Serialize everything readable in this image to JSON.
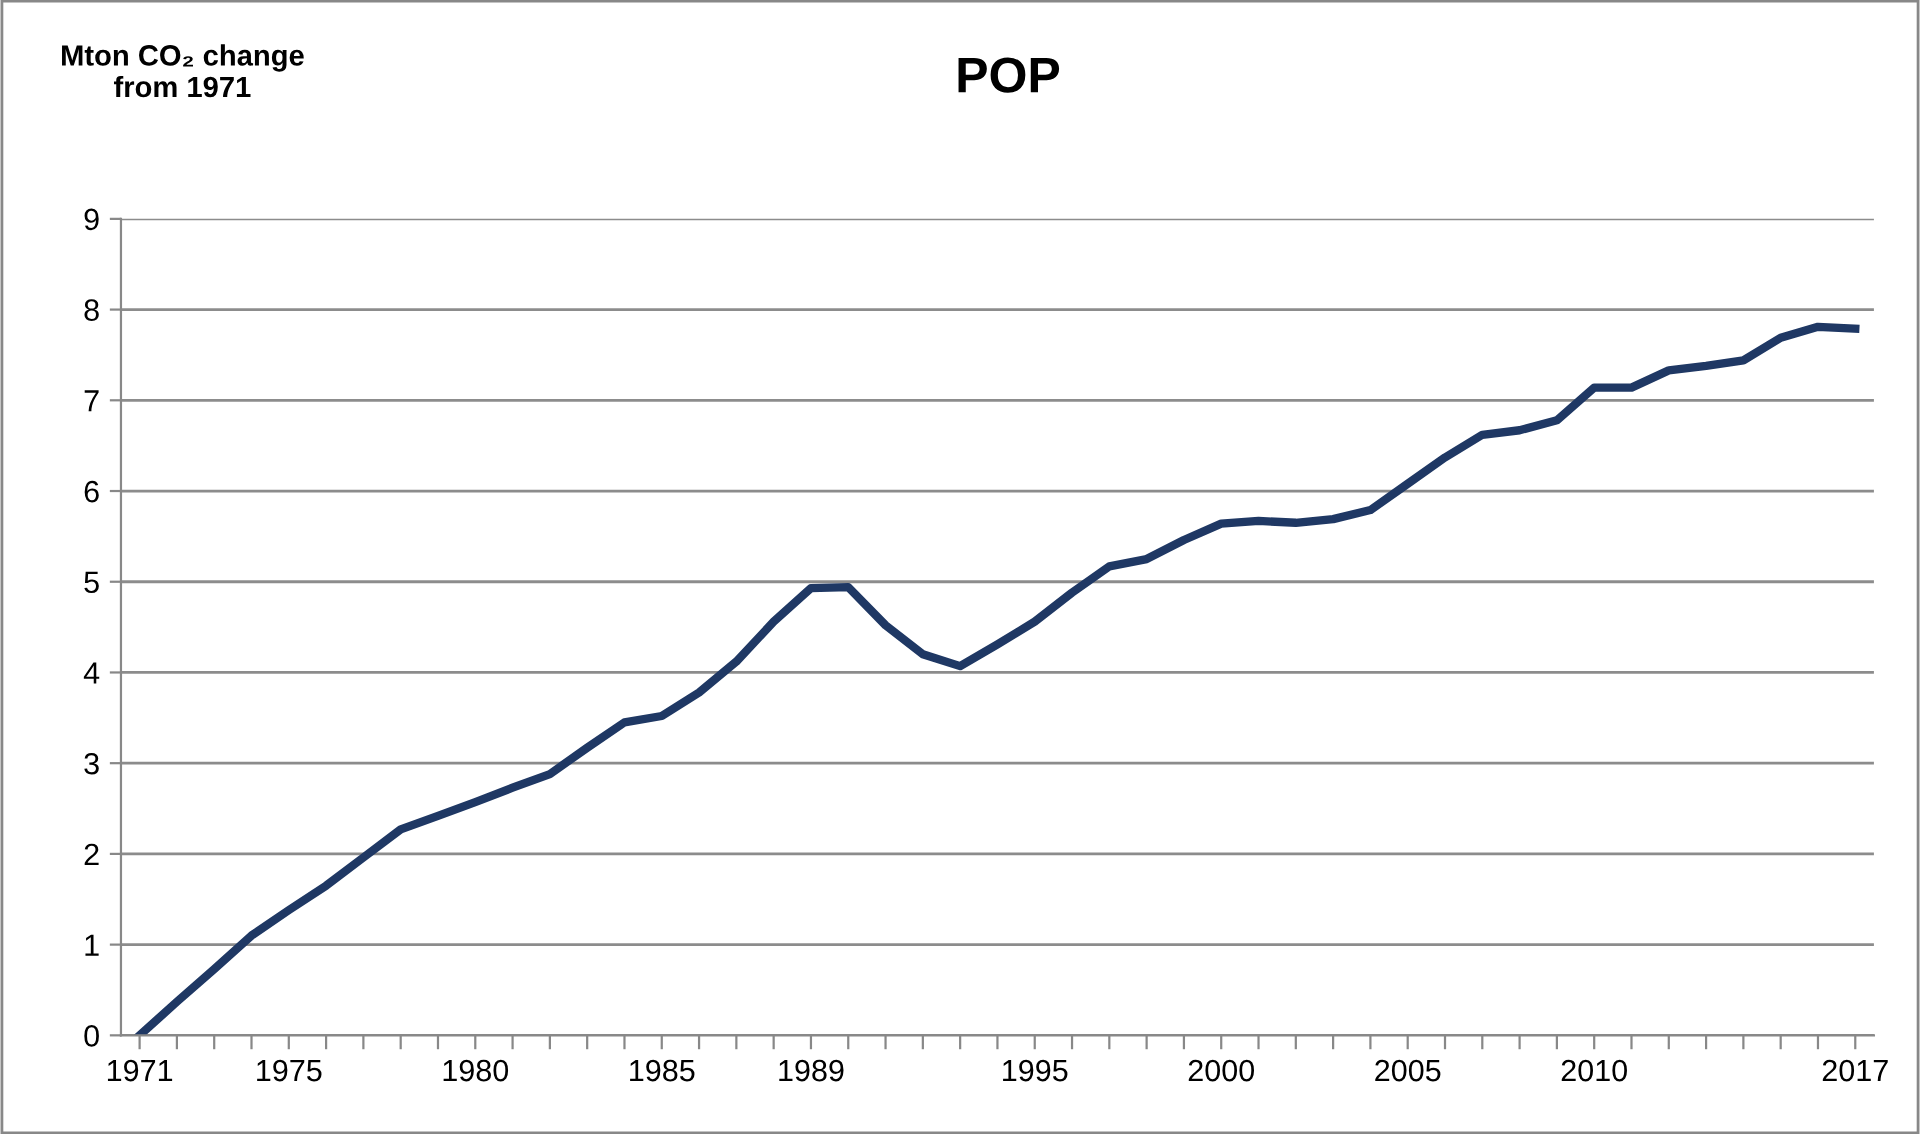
{
  "chart_data": {
    "type": "line",
    "title": "POP",
    "ylabel": "Mton CO₂ change\nfrom 1971",
    "categories": [
      "1971",
      null,
      null,
      null,
      "1975",
      null,
      null,
      null,
      null,
      "1980",
      null,
      null,
      null,
      null,
      "1985",
      null,
      null,
      null,
      "1989",
      null,
      null,
      null,
      null,
      null,
      "1995",
      null,
      null,
      null,
      null,
      "2000",
      null,
      null,
      null,
      null,
      "2005",
      null,
      null,
      null,
      null,
      "2010",
      null,
      null,
      null,
      null,
      null,
      null,
      "2017"
    ],
    "series": [
      {
        "color": "#1f3864",
        "values": [
          0,
          0.37,
          0.73,
          1.1,
          1.38,
          1.65,
          1.96,
          2.27,
          2.42,
          2.57,
          2.73,
          2.88,
          3.17,
          3.45,
          3.52,
          3.78,
          4.12,
          4.56,
          4.93,
          4.94,
          4.52,
          4.2,
          4.07,
          4.31,
          4.56,
          4.88,
          5.17,
          5.25,
          5.46,
          5.64,
          5.67,
          5.65,
          5.69,
          5.79,
          6.08,
          6.37,
          6.62,
          6.67,
          6.78,
          7.14,
          7.14,
          7.33,
          7.38,
          7.44,
          7.69,
          7.81,
          7.79
        ]
      }
    ],
    "ylim": [
      0,
      9
    ],
    "yticks": [
      0,
      1,
      2,
      3,
      4,
      5,
      6,
      7,
      8,
      9
    ],
    "grid": "y",
    "legend": false,
    "marker": "none",
    "line_style": "solid"
  }
}
